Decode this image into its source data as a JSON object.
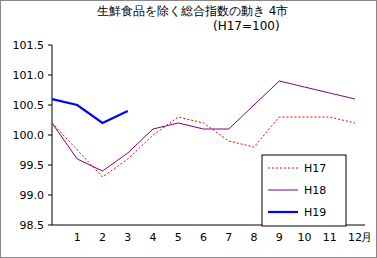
{
  "chart_data": {
    "type": "line",
    "title": "生鮮食品を除く総合指数の動き 4市",
    "subtitle": "(H17=100)",
    "x_label": "月",
    "categories": [
      null,
      "1",
      "2",
      "3",
      "4",
      "5",
      "6",
      "7",
      "8",
      "9",
      "10",
      "11",
      "12"
    ],
    "series": [
      {
        "name": "H17",
        "color": "#ff0000",
        "line_style": "dotted",
        "values": [
          100.2,
          99.75,
          99.3,
          99.6,
          100.0,
          100.3,
          100.2,
          99.9,
          99.8,
          100.3,
          100.3,
          100.3,
          100.2
        ]
      },
      {
        "name": "H18",
        "color": "#800080",
        "line_style": "solid",
        "values": [
          100.2,
          99.6,
          99.4,
          99.7,
          100.1,
          100.2,
          100.1,
          100.1,
          100.5,
          100.9,
          100.8,
          100.7,
          100.6
        ]
      },
      {
        "name": "H19",
        "color": "#0000ff",
        "line_style": "solid",
        "values": [
          100.6,
          100.5,
          100.2,
          100.4,
          null,
          null,
          null,
          null,
          null,
          null,
          null,
          null,
          null
        ]
      }
    ],
    "ylim": [
      98.5,
      101.5
    ],
    "yticks": [
      98.5,
      {
        "value": 99,
        "label": "99.0"
      },
      99.5,
      {
        "value": 100,
        "label": "100.0"
      },
      100.5,
      {
        "value": 101,
        "label": "101.0"
      },
      101.5
    ],
    "grid": false,
    "legend": "lower right"
  }
}
